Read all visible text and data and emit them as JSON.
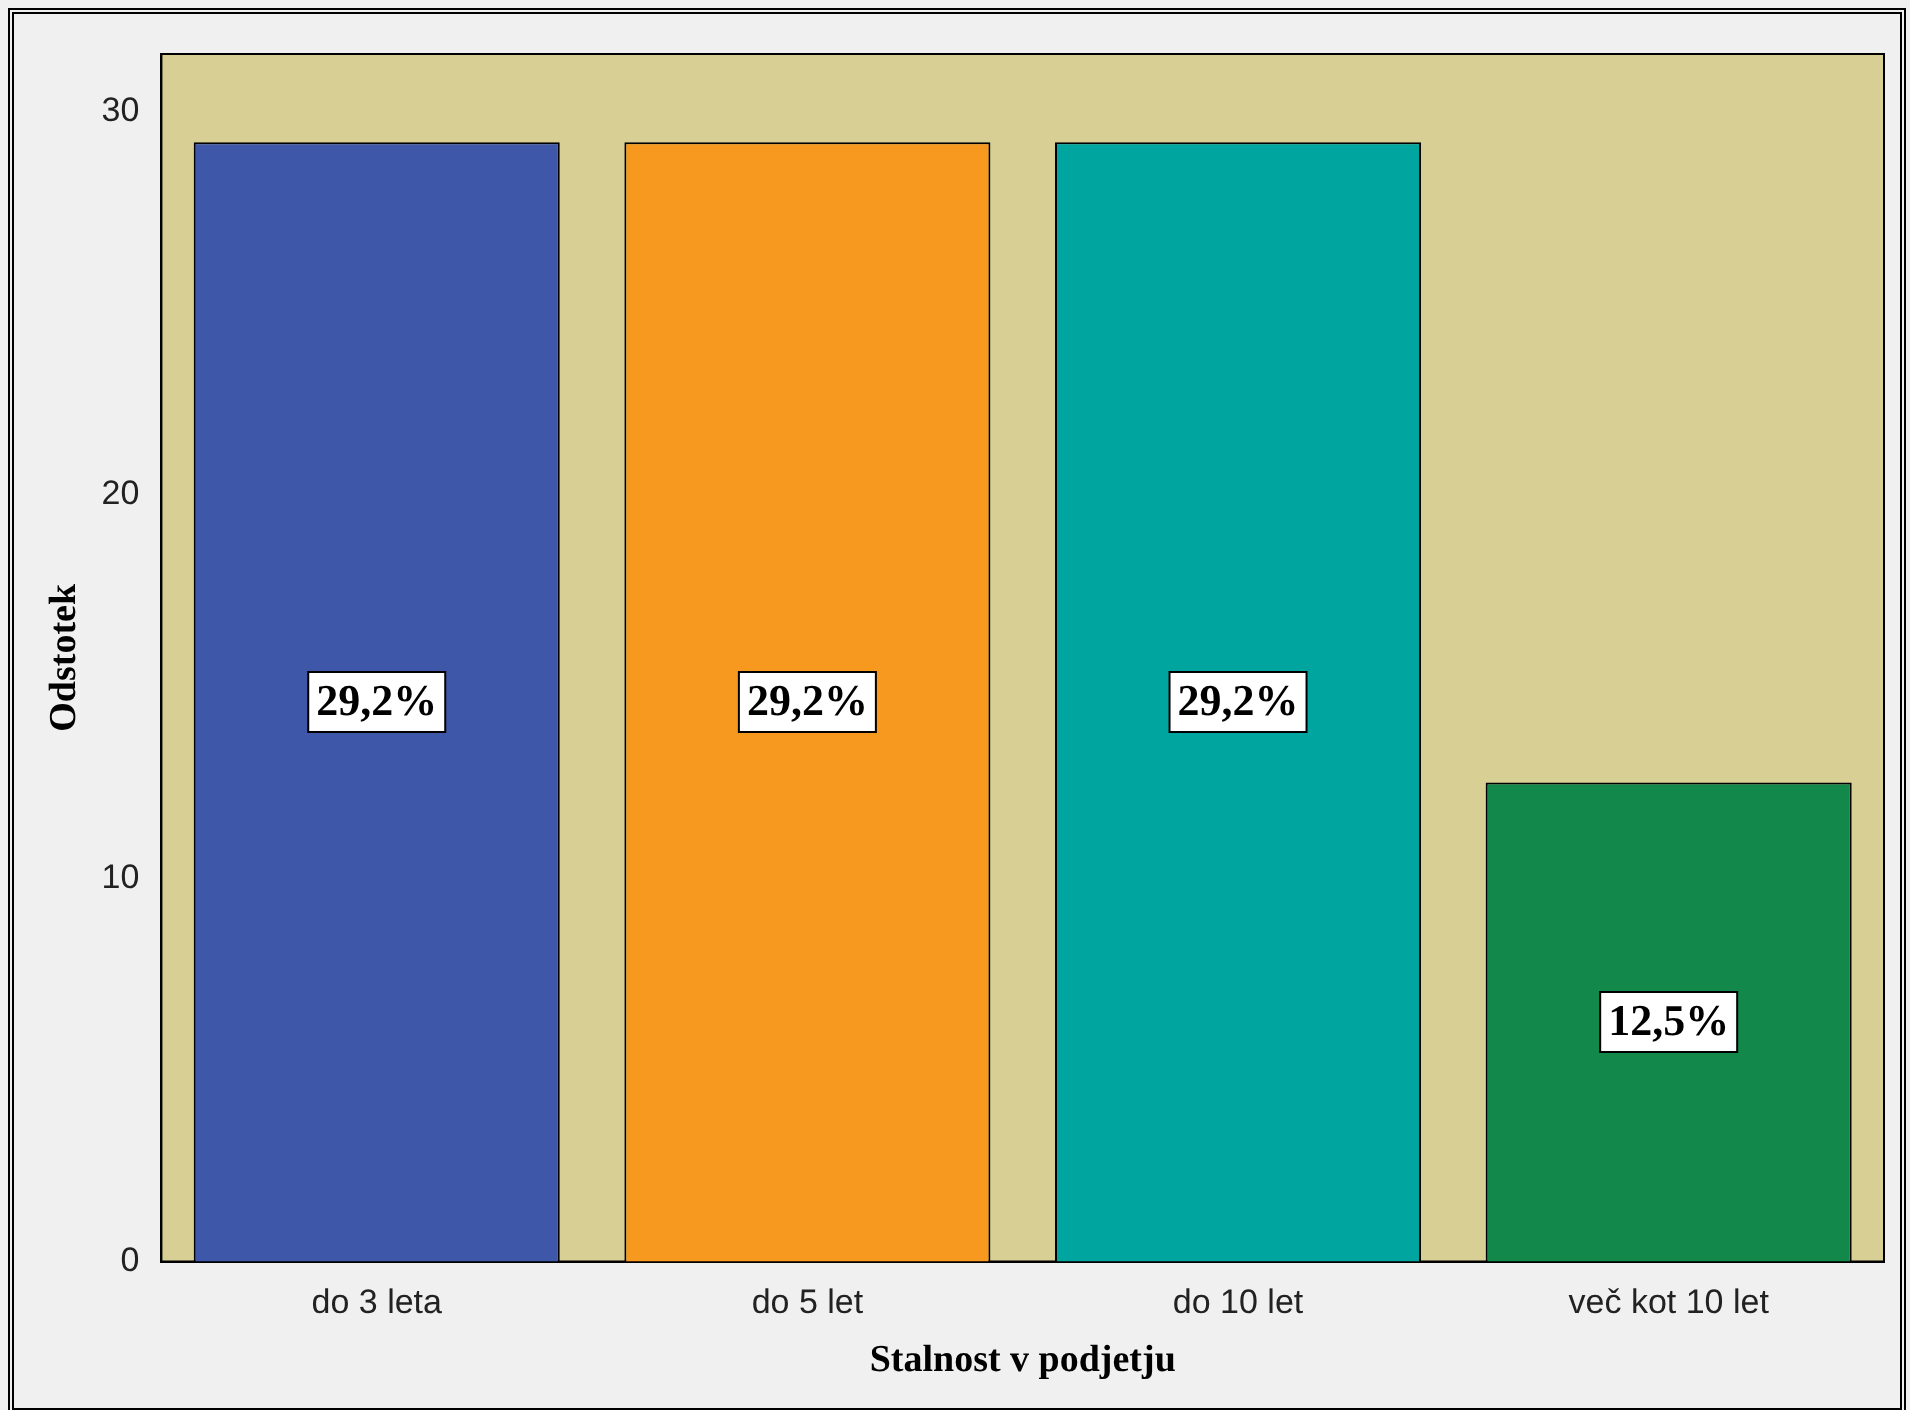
{
  "chart_data": {
    "type": "bar",
    "xlabel": "Stalnost v podjetju",
    "ylabel": "Odstotek",
    "categories": [
      "do 3 leta",
      "do 5 let",
      "do 10 let",
      "več kot 10 let"
    ],
    "values": [
      29.2,
      29.2,
      29.2,
      12.5
    ],
    "colors": [
      "#3f57a8",
      "#f7991f",
      "#00a5a0",
      "#12894a"
    ],
    "value_labels": [
      "29,2%",
      "29,2%",
      "29,2%",
      "12,5%"
    ],
    "ylim": [
      0,
      31.5
    ],
    "yticks": [
      {
        "value": 0,
        "label": "0"
      },
      {
        "value": 10,
        "label": "10"
      },
      {
        "value": 20,
        "label": "20"
      },
      {
        "value": 30,
        "label": "30"
      }
    ],
    "grid": false,
    "legend": false
  }
}
